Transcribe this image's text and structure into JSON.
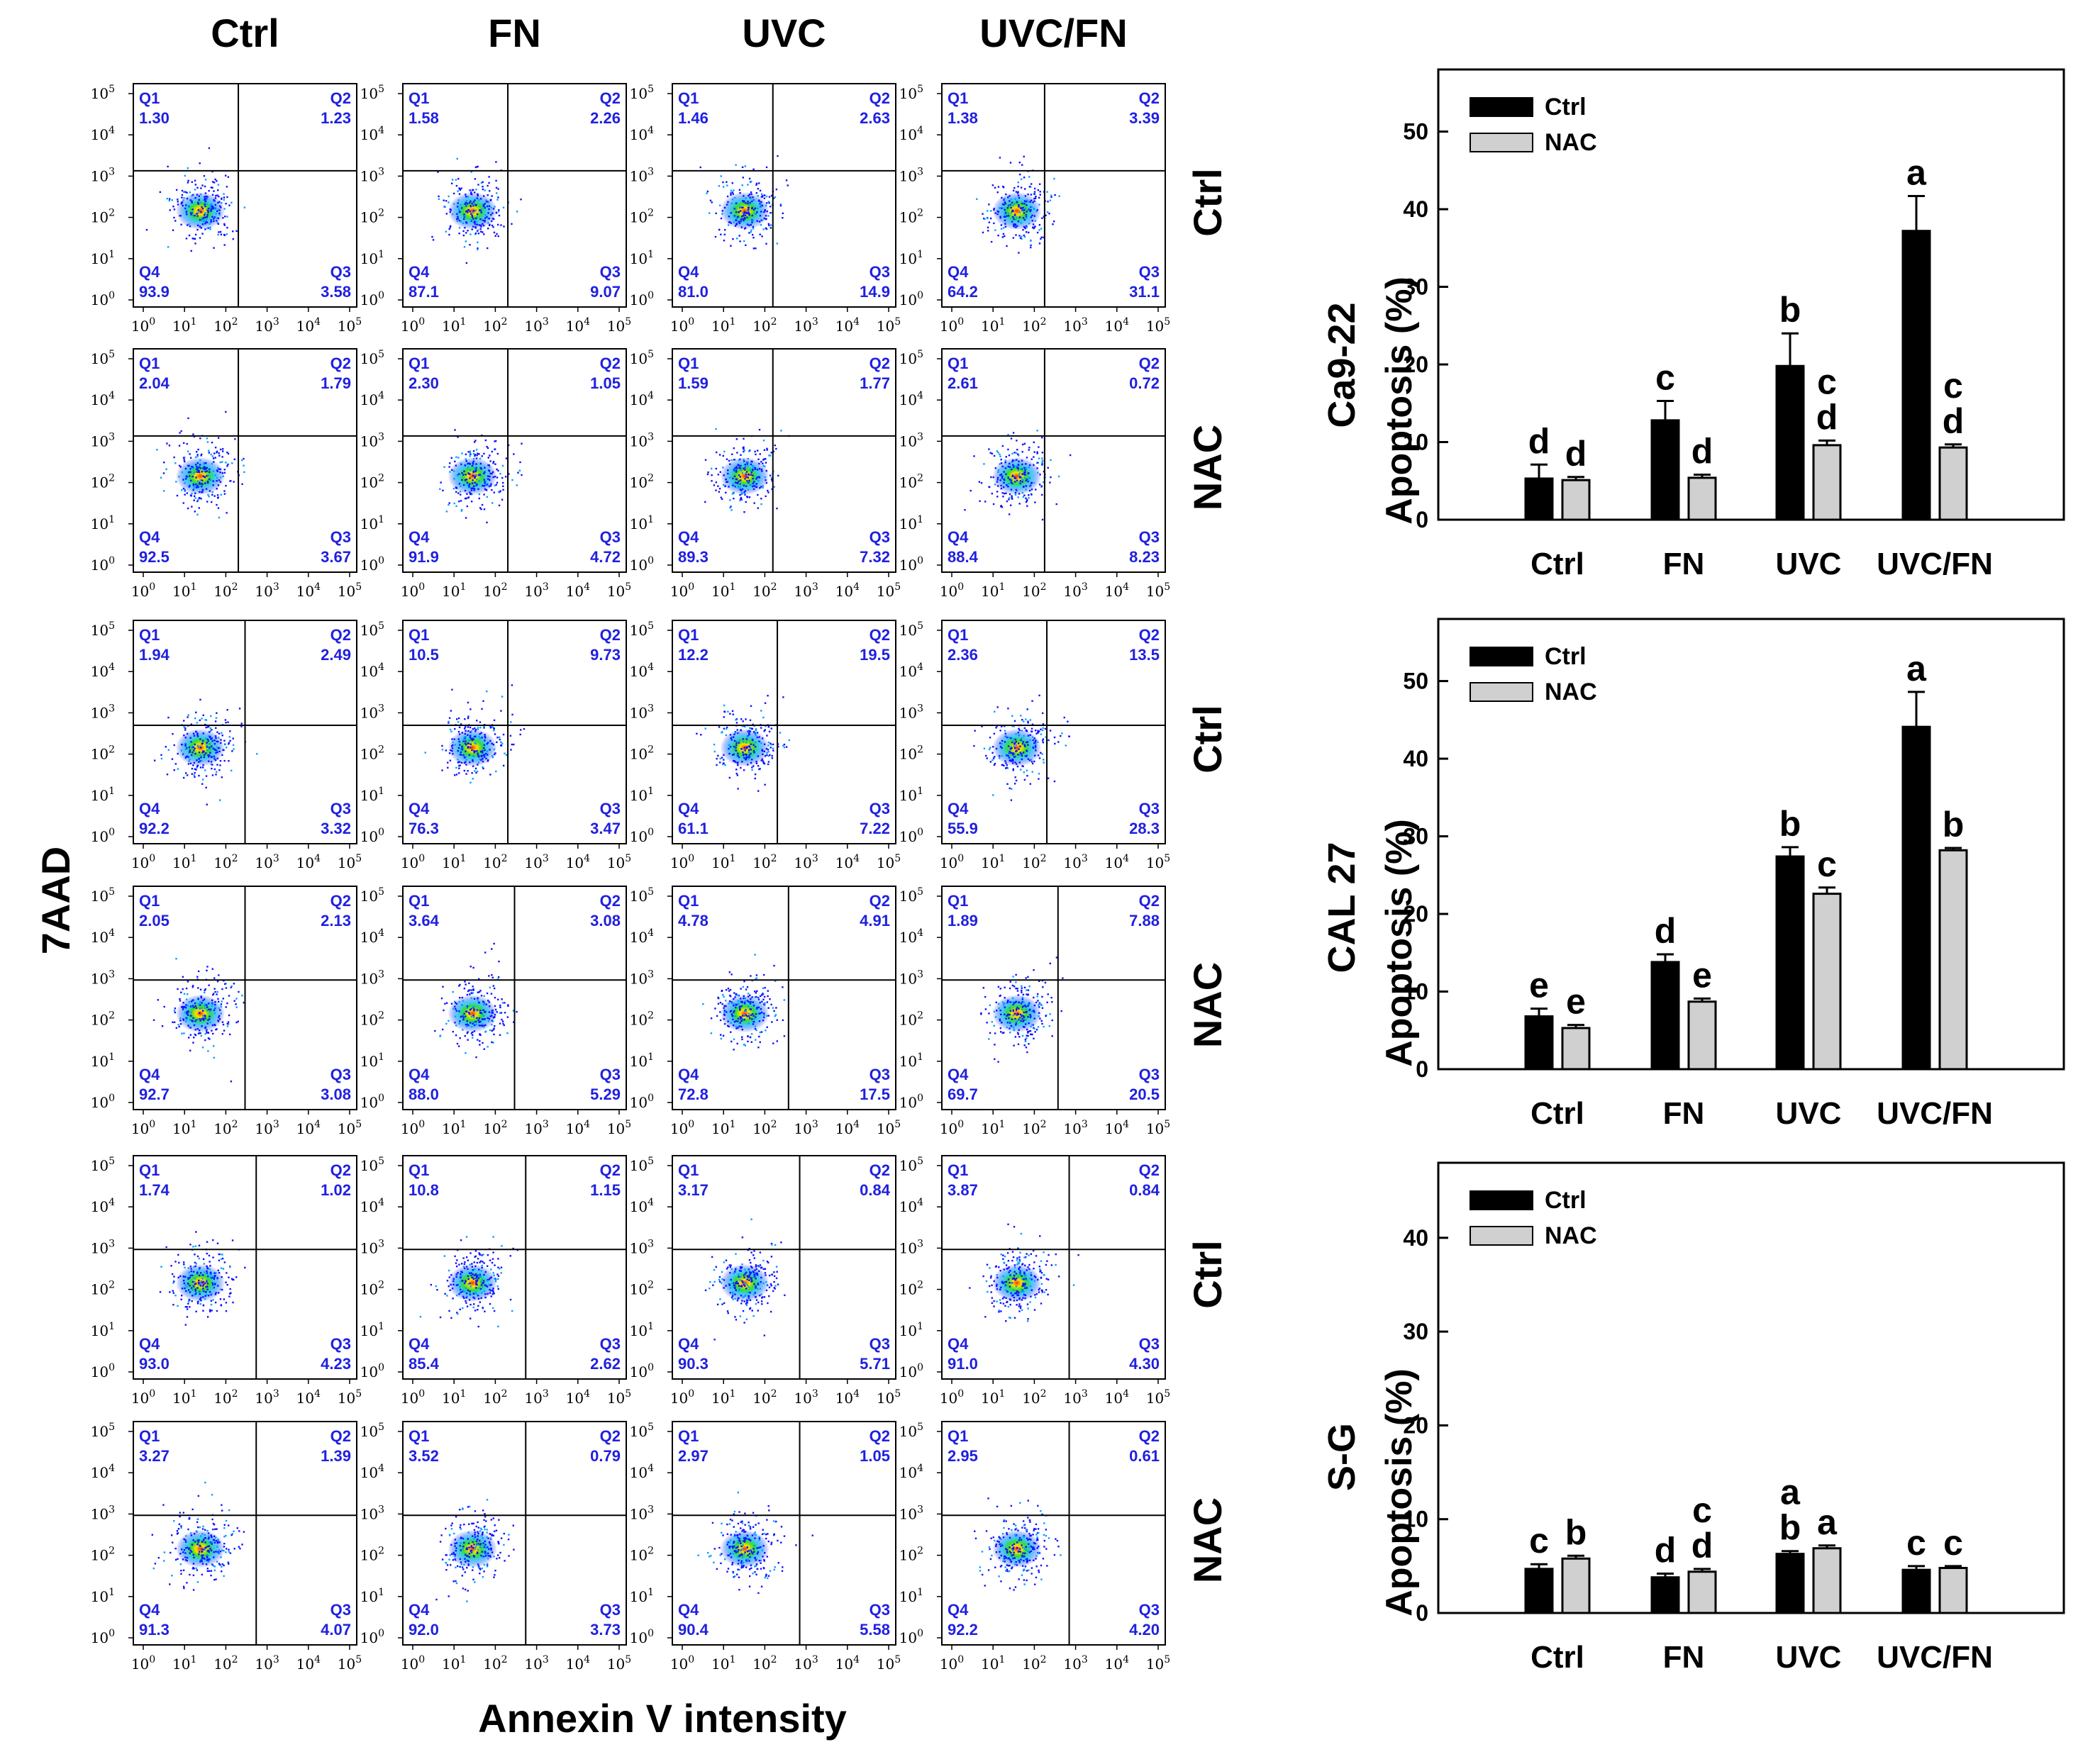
{
  "labels": {
    "columns": [
      "Ctrl",
      "FN",
      "UVC",
      "UVC/FN"
    ],
    "row_conditions": [
      "Ctrl",
      "NAC",
      "Ctrl",
      "NAC",
      "Ctrl",
      "NAC"
    ],
    "y_axis": "7AAD",
    "x_axis": "Annexin V intensity",
    "cell_lines": [
      "Ca9-22",
      "CAL 27",
      "S-G"
    ]
  },
  "flow_panels": [
    [
      {
        "Q1": "1.30",
        "Q2": "1.23",
        "Q3": "3.58",
        "Q4": "93.9"
      },
      {
        "Q1": "1.58",
        "Q2": "2.26",
        "Q3": "9.07",
        "Q4": "87.1"
      },
      {
        "Q1": "1.46",
        "Q2": "2.63",
        "Q3": "14.9",
        "Q4": "81.0"
      },
      {
        "Q1": "1.38",
        "Q2": "3.39",
        "Q3": "31.1",
        "Q4": "64.2"
      }
    ],
    [
      {
        "Q1": "2.04",
        "Q2": "1.79",
        "Q3": "3.67",
        "Q4": "92.5"
      },
      {
        "Q1": "2.30",
        "Q2": "1.05",
        "Q3": "4.72",
        "Q4": "91.9"
      },
      {
        "Q1": "1.59",
        "Q2": "1.77",
        "Q3": "7.32",
        "Q4": "89.3"
      },
      {
        "Q1": "2.61",
        "Q2": "0.72",
        "Q3": "8.23",
        "Q4": "88.4"
      }
    ],
    [
      {
        "Q1": "1.94",
        "Q2": "2.49",
        "Q3": "3.32",
        "Q4": "92.2"
      },
      {
        "Q1": "10.5",
        "Q2": "9.73",
        "Q3": "3.47",
        "Q4": "76.3"
      },
      {
        "Q1": "12.2",
        "Q2": "19.5",
        "Q3": "7.22",
        "Q4": "61.1"
      },
      {
        "Q1": "2.36",
        "Q2": "13.5",
        "Q3": "28.3",
        "Q4": "55.9"
      }
    ],
    [
      {
        "Q1": "2.05",
        "Q2": "2.13",
        "Q3": "3.08",
        "Q4": "92.7"
      },
      {
        "Q1": "3.64",
        "Q2": "3.08",
        "Q3": "5.29",
        "Q4": "88.0"
      },
      {
        "Q1": "4.78",
        "Q2": "4.91",
        "Q3": "17.5",
        "Q4": "72.8"
      },
      {
        "Q1": "1.89",
        "Q2": "7.88",
        "Q3": "20.5",
        "Q4": "69.7"
      }
    ],
    [
      {
        "Q1": "1.74",
        "Q2": "1.02",
        "Q3": "4.23",
        "Q4": "93.0"
      },
      {
        "Q1": "10.8",
        "Q2": "1.15",
        "Q3": "2.62",
        "Q4": "85.4"
      },
      {
        "Q1": "3.17",
        "Q2": "0.84",
        "Q3": "5.71",
        "Q4": "90.3"
      },
      {
        "Q1": "3.87",
        "Q2": "0.84",
        "Q3": "4.30",
        "Q4": "91.0"
      }
    ],
    [
      {
        "Q1": "3.27",
        "Q2": "1.39",
        "Q3": "4.07",
        "Q4": "91.3"
      },
      {
        "Q1": "3.52",
        "Q2": "0.79",
        "Q3": "3.73",
        "Q4": "92.0"
      },
      {
        "Q1": "2.97",
        "Q2": "1.05",
        "Q3": "5.58",
        "Q4": "90.4"
      },
      {
        "Q1": "2.95",
        "Q2": "0.61",
        "Q3": "4.20",
        "Q4": "92.2"
      }
    ]
  ],
  "flow_axis": {
    "range_log10": [
      0,
      5
    ],
    "tick_powers": [
      "0",
      "1",
      "2",
      "3",
      "4",
      "5"
    ],
    "tick_base": "10"
  },
  "colors": {
    "ctrl_bar": "#000000",
    "nac_bar": "#d0d0d0",
    "gate_text": "#2020e0",
    "density_high": "#ff3000",
    "density_low": "#0000ff"
  },
  "chart_data": [
    {
      "type": "bar",
      "cell_line": "Ca9-22",
      "ylabel": "Apoptosis (%)",
      "ylim": [
        0,
        58
      ],
      "yticks": [
        0,
        10,
        20,
        30,
        40,
        50
      ],
      "categories": [
        "Ctrl",
        "FN",
        "UVC",
        "UVC/FN"
      ],
      "legend": {
        "position": "top-left",
        "entries": [
          "Ctrl",
          "NAC"
        ]
      },
      "series": [
        {
          "name": "Ctrl",
          "values": [
            5.3,
            12.8,
            19.8,
            37.2
          ],
          "errors": [
            1.8,
            2.5,
            4.2,
            4.5
          ],
          "letters": [
            "d",
            "c",
            "b",
            "a"
          ]
        },
        {
          "name": "NAC",
          "values": [
            5.1,
            5.4,
            9.6,
            9.3
          ],
          "errors": [
            0.4,
            0.4,
            0.6,
            0.4
          ],
          "letters": [
            "d",
            "d",
            "c\nd",
            "c\nd"
          ]
        }
      ]
    },
    {
      "type": "bar",
      "cell_line": "CAL 27",
      "ylabel": "Apoptosis (%)",
      "ylim": [
        0,
        58
      ],
      "yticks": [
        0,
        10,
        20,
        30,
        40,
        50
      ],
      "categories": [
        "Ctrl",
        "FN",
        "UVC",
        "UVC/FN"
      ],
      "legend": {
        "position": "top-left",
        "entries": [
          "Ctrl",
          "NAC"
        ]
      },
      "series": [
        {
          "name": "Ctrl",
          "values": [
            6.8,
            13.8,
            27.4,
            44.1
          ],
          "errors": [
            1.0,
            1.0,
            1.2,
            4.5
          ],
          "letters": [
            "e",
            "d",
            "b",
            "a"
          ]
        },
        {
          "name": "NAC",
          "values": [
            5.3,
            8.7,
            22.6,
            28.2
          ],
          "errors": [
            0.4,
            0.4,
            0.8,
            0.3
          ],
          "letters": [
            "e",
            "e",
            "c",
            "b"
          ]
        }
      ]
    },
    {
      "type": "bar",
      "cell_line": "S-G",
      "ylabel": "Apoptosis (%)",
      "ylim": [
        0,
        48
      ],
      "yticks": [
        0,
        10,
        20,
        30,
        40
      ],
      "categories": [
        "Ctrl",
        "FN",
        "UVC",
        "UVC/FN"
      ],
      "legend": {
        "position": "top-left",
        "entries": [
          "Ctrl",
          "NAC"
        ]
      },
      "series": [
        {
          "name": "Ctrl",
          "values": [
            4.7,
            3.8,
            6.3,
            4.6
          ],
          "errors": [
            0.5,
            0.4,
            0.3,
            0.4
          ],
          "letters": [
            "c",
            "d",
            "a\nb",
            "c"
          ]
        },
        {
          "name": "NAC",
          "values": [
            5.8,
            4.4,
            6.9,
            4.8
          ],
          "errors": [
            0.3,
            0.3,
            0.3,
            0.2
          ],
          "letters": [
            "b",
            "c\nd",
            "a",
            "c"
          ]
        }
      ]
    }
  ]
}
